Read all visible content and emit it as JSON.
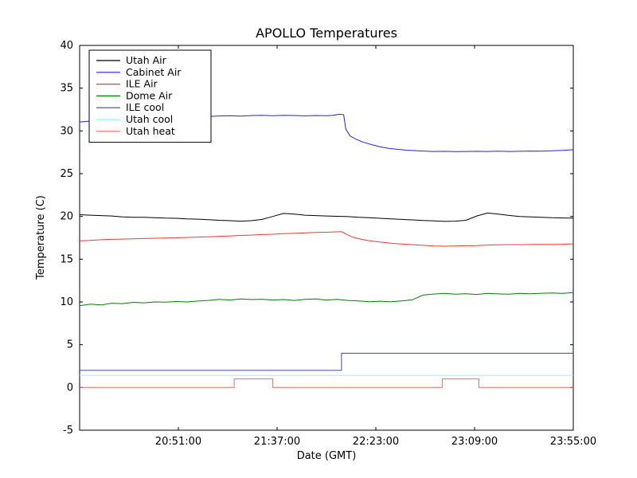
{
  "title": "APOLLO Temperatures",
  "chart_data": {
    "type": "line",
    "title": "APOLLO Temperatures",
    "xlabel": "Date (GMT)",
    "ylabel": "Temperature (C)",
    "xlim": [
      0,
      230
    ],
    "ylim": [
      -5,
      40
    ],
    "x_axis_note": "minutes after 20:05:00 GMT",
    "grid": false,
    "legend_position": "upper left",
    "yticks": [
      -5,
      0,
      5,
      10,
      15,
      20,
      25,
      30,
      35,
      40
    ],
    "xticks": [
      {
        "value": 46,
        "label": "20:51:00"
      },
      {
        "value": 92,
        "label": "21:37:00"
      },
      {
        "value": 138,
        "label": "22:23:00"
      },
      {
        "value": 184,
        "label": "23:09:00"
      },
      {
        "value": 230,
        "label": "23:55:00"
      }
    ],
    "series": [
      {
        "name": "Utah Air",
        "color": "#000000",
        "points": [
          [
            0,
            20.2
          ],
          [
            5,
            20.15
          ],
          [
            10,
            20.1
          ],
          [
            15,
            20.05
          ],
          [
            20,
            19.95
          ],
          [
            25,
            19.9
          ],
          [
            30,
            19.9
          ],
          [
            35,
            19.85
          ],
          [
            40,
            19.8
          ],
          [
            45,
            19.78
          ],
          [
            50,
            19.72
          ],
          [
            55,
            19.68
          ],
          [
            60,
            19.62
          ],
          [
            65,
            19.55
          ],
          [
            70,
            19.5
          ],
          [
            75,
            19.45
          ],
          [
            80,
            19.5
          ],
          [
            85,
            19.65
          ],
          [
            90,
            20.0
          ],
          [
            95,
            20.35
          ],
          [
            100,
            20.28
          ],
          [
            105,
            20.15
          ],
          [
            110,
            20.1
          ],
          [
            115,
            20.05
          ],
          [
            120,
            20.02
          ],
          [
            125,
            19.98
          ],
          [
            130,
            19.9
          ],
          [
            135,
            19.85
          ],
          [
            140,
            19.78
          ],
          [
            145,
            19.72
          ],
          [
            150,
            19.65
          ],
          [
            155,
            19.6
          ],
          [
            160,
            19.52
          ],
          [
            165,
            19.48
          ],
          [
            170,
            19.42
          ],
          [
            175,
            19.45
          ],
          [
            180,
            19.55
          ],
          [
            185,
            20.05
          ],
          [
            190,
            20.4
          ],
          [
            195,
            20.28
          ],
          [
            200,
            20.12
          ],
          [
            205,
            20.0
          ],
          [
            210,
            19.95
          ],
          [
            215,
            19.9
          ],
          [
            220,
            19.85
          ],
          [
            225,
            19.82
          ],
          [
            230,
            19.8
          ]
        ]
      },
      {
        "name": "Cabinet Air",
        "color": "#2222ee",
        "points": [
          [
            0,
            31.05
          ],
          [
            5,
            31.15
          ],
          [
            10,
            31.3
          ],
          [
            15,
            31.4
          ],
          [
            20,
            31.5
          ],
          [
            25,
            31.55
          ],
          [
            30,
            31.6
          ],
          [
            35,
            31.62
          ],
          [
            40,
            31.65
          ],
          [
            45,
            31.62
          ],
          [
            50,
            31.68
          ],
          [
            55,
            31.72
          ],
          [
            60,
            31.7
          ],
          [
            65,
            31.75
          ],
          [
            70,
            31.78
          ],
          [
            75,
            31.74
          ],
          [
            80,
            31.8
          ],
          [
            85,
            31.82
          ],
          [
            90,
            31.78
          ],
          [
            95,
            31.83
          ],
          [
            100,
            31.8
          ],
          [
            105,
            31.76
          ],
          [
            110,
            31.8
          ],
          [
            115,
            31.77
          ],
          [
            118,
            31.82
          ],
          [
            121,
            31.95
          ],
          [
            123,
            31.9
          ],
          [
            124,
            30.2
          ],
          [
            126,
            29.4
          ],
          [
            129,
            29.0
          ],
          [
            132,
            28.7
          ],
          [
            136,
            28.4
          ],
          [
            140,
            28.15
          ],
          [
            144,
            27.95
          ],
          [
            148,
            27.85
          ],
          [
            152,
            27.75
          ],
          [
            156,
            27.7
          ],
          [
            160,
            27.65
          ],
          [
            165,
            27.6
          ],
          [
            170,
            27.62
          ],
          [
            175,
            27.58
          ],
          [
            180,
            27.6
          ],
          [
            185,
            27.62
          ],
          [
            190,
            27.6
          ],
          [
            195,
            27.63
          ],
          [
            200,
            27.6
          ],
          [
            205,
            27.62
          ],
          [
            210,
            27.65
          ],
          [
            215,
            27.63
          ],
          [
            220,
            27.68
          ],
          [
            225,
            27.72
          ],
          [
            230,
            27.8
          ]
        ]
      },
      {
        "name": "ILE Air",
        "color": "#ff3333",
        "points": [
          [
            0,
            17.15
          ],
          [
            5,
            17.2
          ],
          [
            10,
            17.28
          ],
          [
            15,
            17.32
          ],
          [
            20,
            17.35
          ],
          [
            25,
            17.38
          ],
          [
            30,
            17.42
          ],
          [
            35,
            17.45
          ],
          [
            40,
            17.48
          ],
          [
            45,
            17.5
          ],
          [
            50,
            17.55
          ],
          [
            55,
            17.58
          ],
          [
            60,
            17.62
          ],
          [
            65,
            17.68
          ],
          [
            70,
            17.72
          ],
          [
            75,
            17.78
          ],
          [
            80,
            17.82
          ],
          [
            85,
            17.88
          ],
          [
            90,
            17.92
          ],
          [
            95,
            17.98
          ],
          [
            100,
            18.02
          ],
          [
            105,
            18.08
          ],
          [
            110,
            18.12
          ],
          [
            115,
            18.15
          ],
          [
            120,
            18.2
          ],
          [
            122,
            18.22
          ],
          [
            124,
            17.95
          ],
          [
            127,
            17.6
          ],
          [
            130,
            17.4
          ],
          [
            134,
            17.2
          ],
          [
            138,
            17.05
          ],
          [
            142,
            16.95
          ],
          [
            146,
            16.85
          ],
          [
            150,
            16.78
          ],
          [
            155,
            16.7
          ],
          [
            160,
            16.62
          ],
          [
            165,
            16.55
          ],
          [
            170,
            16.52
          ],
          [
            175,
            16.55
          ],
          [
            180,
            16.58
          ],
          [
            185,
            16.6
          ],
          [
            190,
            16.65
          ],
          [
            195,
            16.68
          ],
          [
            200,
            16.7
          ],
          [
            205,
            16.7
          ],
          [
            210,
            16.72
          ],
          [
            215,
            16.73
          ],
          [
            220,
            16.72
          ],
          [
            225,
            16.75
          ],
          [
            230,
            16.8
          ]
        ]
      },
      {
        "name": "Dome Air",
        "color": "#008000",
        "points": [
          [
            0,
            9.55
          ],
          [
            5,
            9.75
          ],
          [
            10,
            9.65
          ],
          [
            15,
            9.85
          ],
          [
            20,
            9.8
          ],
          [
            25,
            9.95
          ],
          [
            30,
            9.9
          ],
          [
            35,
            10.0
          ],
          [
            40,
            9.98
          ],
          [
            45,
            10.05
          ],
          [
            50,
            10.0
          ],
          [
            55,
            10.1
          ],
          [
            60,
            10.18
          ],
          [
            65,
            10.3
          ],
          [
            70,
            10.22
          ],
          [
            75,
            10.35
          ],
          [
            80,
            10.28
          ],
          [
            85,
            10.32
          ],
          [
            90,
            10.22
          ],
          [
            95,
            10.28
          ],
          [
            100,
            10.18
          ],
          [
            105,
            10.3
          ],
          [
            110,
            10.35
          ],
          [
            115,
            10.22
          ],
          [
            120,
            10.3
          ],
          [
            125,
            10.18
          ],
          [
            130,
            10.12
          ],
          [
            135,
            10.02
          ],
          [
            140,
            10.08
          ],
          [
            145,
            10.02
          ],
          [
            150,
            10.12
          ],
          [
            155,
            10.25
          ],
          [
            160,
            10.8
          ],
          [
            165,
            10.92
          ],
          [
            170,
            11.0
          ],
          [
            175,
            10.9
          ],
          [
            180,
            10.95
          ],
          [
            185,
            10.88
          ],
          [
            190,
            11.0
          ],
          [
            195,
            10.94
          ],
          [
            200,
            10.9
          ],
          [
            205,
            11.0
          ],
          [
            210,
            10.96
          ],
          [
            215,
            11.02
          ],
          [
            220,
            11.05
          ],
          [
            225,
            11.0
          ],
          [
            230,
            11.1
          ]
        ]
      },
      {
        "name": "ILE cool",
        "color": "#44449a",
        "points": [
          [
            0,
            2.0
          ],
          [
            122,
            2.0
          ],
          [
            122,
            4.0
          ],
          [
            230,
            4.0
          ]
        ]
      },
      {
        "name": "Utah cool",
        "color": "#80ffff",
        "points": [
          [
            0,
            1.4
          ],
          [
            230,
            1.4
          ]
        ]
      },
      {
        "name": "Utah heat",
        "color": "#ff6666",
        "points": [
          [
            0,
            0.0
          ],
          [
            72,
            0.0
          ],
          [
            72,
            1.0
          ],
          [
            90,
            1.0
          ],
          [
            90,
            0.0
          ],
          [
            169,
            0.0
          ],
          [
            169,
            1.0
          ],
          [
            186,
            1.0
          ],
          [
            186,
            0.0
          ],
          [
            230,
            0.0
          ]
        ]
      }
    ]
  }
}
